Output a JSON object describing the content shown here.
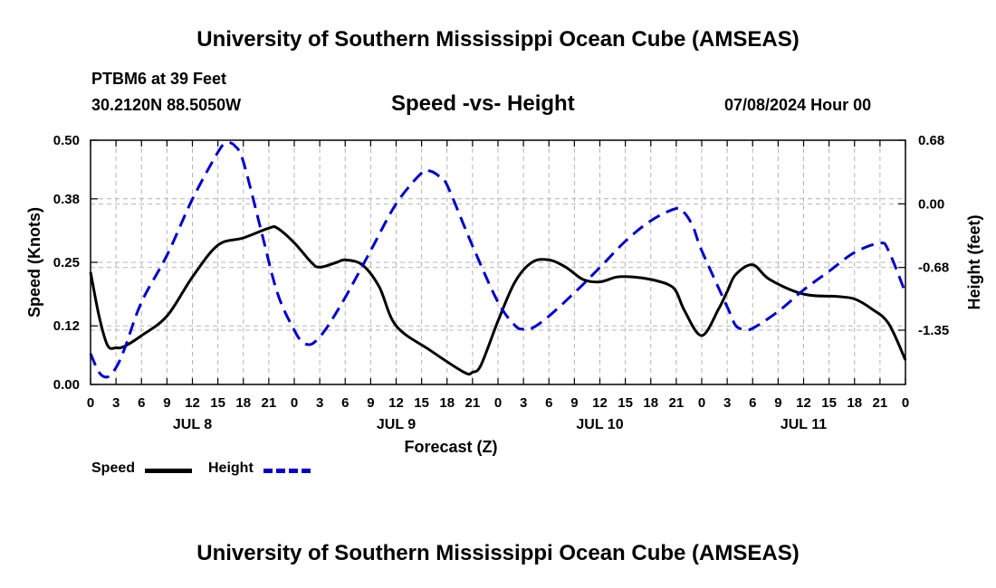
{
  "page": {
    "title_top": "University of Southern Mississippi Ocean Cube (AMSEAS)",
    "title_bottom": "University of Southern Mississippi Ocean Cube (AMSEAS)",
    "station": "PTBM6 at 39 Feet",
    "coords": "30.2120N  88.5050W",
    "datetime": "07/08/2024 Hour 00"
  },
  "chart_data": {
    "type": "line",
    "title": "Speed -vs- Height",
    "xlabel": "Forecast (Z)",
    "ylabel_left": "Speed (Knots)",
    "ylabel_right": "Height (feet)",
    "x_range_hours": [
      0,
      96
    ],
    "x_tick_labels": [
      "0",
      "3",
      "6",
      "9",
      "12",
      "15",
      "18",
      "21",
      "0",
      "3",
      "6",
      "9",
      "12",
      "15",
      "18",
      "21",
      "0",
      "3",
      "6",
      "9",
      "12",
      "15",
      "18",
      "21",
      "0",
      "3",
      "6",
      "9",
      "12",
      "15",
      "18",
      "21",
      "0"
    ],
    "day_labels": [
      {
        "label": "JUL 8",
        "hour": 12
      },
      {
        "label": "JUL 9",
        "hour": 36
      },
      {
        "label": "JUL 10",
        "hour": 60
      },
      {
        "label": "JUL 11",
        "hour": 84
      }
    ],
    "y_left": {
      "ticks": [
        0.0,
        0.12,
        0.25,
        0.38,
        0.5
      ],
      "tick_labels": [
        "0.00",
        "0.12",
        "0.25",
        "0.38",
        "0.50"
      ],
      "range": [
        0,
        0.5
      ]
    },
    "y_right": {
      "ticks": [
        0.68,
        0.0,
        -0.68,
        -1.35
      ],
      "tick_labels": [
        "0.68",
        "0.00",
        "-0.68",
        "-1.35"
      ],
      "range": [
        -1.93,
        0.68
      ]
    },
    "grid": true,
    "legend": [
      {
        "name": "Speed",
        "color": "#000000",
        "style": "solid"
      },
      {
        "name": "Height",
        "color": "#0000cc",
        "style": "dashed"
      }
    ],
    "series": [
      {
        "name": "Speed",
        "axis": "left",
        "color": "#000000",
        "x": [
          0,
          1,
          2,
          3,
          4,
          6,
          9,
          12,
          15,
          18,
          21,
          22,
          24,
          26,
          27,
          29,
          30,
          32,
          34,
          36,
          40,
          44,
          45,
          46,
          48,
          50,
          52,
          54,
          56,
          58,
          60,
          62,
          64,
          66,
          68,
          69,
          70,
          72,
          74,
          75,
          76,
          78,
          80,
          84,
          88,
          90,
          92,
          94,
          96
        ],
        "y": [
          0.23,
          0.14,
          0.08,
          0.075,
          0.078,
          0.1,
          0.14,
          0.22,
          0.285,
          0.3,
          0.32,
          0.32,
          0.29,
          0.25,
          0.24,
          0.25,
          0.255,
          0.245,
          0.2,
          0.12,
          0.07,
          0.025,
          0.025,
          0.04,
          0.13,
          0.21,
          0.25,
          0.255,
          0.24,
          0.215,
          0.21,
          0.22,
          0.22,
          0.215,
          0.205,
          0.19,
          0.15,
          0.1,
          0.155,
          0.19,
          0.225,
          0.245,
          0.215,
          0.185,
          0.18,
          0.175,
          0.155,
          0.125,
          0.05
        ]
      },
      {
        "name": "Height",
        "axis": "right",
        "color": "#0000cc",
        "x": [
          0,
          1,
          2,
          3,
          4,
          6,
          9,
          12,
          15,
          16,
          17,
          18,
          20,
          22,
          24,
          25,
          26,
          27,
          28,
          30,
          33,
          36,
          39,
          40,
          41,
          42,
          45,
          48,
          50,
          51,
          52,
          54,
          57,
          60,
          63,
          66,
          69,
          70,
          71,
          72,
          75,
          76,
          77,
          78,
          81,
          84,
          87,
          90,
          93,
          94,
          96
        ],
        "y": [
          -1.6,
          -1.8,
          -1.85,
          -1.75,
          -1.55,
          -1.05,
          -0.55,
          0.05,
          0.55,
          0.65,
          0.62,
          0.45,
          -0.25,
          -0.95,
          -1.35,
          -1.48,
          -1.5,
          -1.42,
          -1.3,
          -1.0,
          -0.5,
          0.0,
          0.33,
          0.35,
          0.3,
          0.2,
          -0.45,
          -1.05,
          -1.3,
          -1.34,
          -1.33,
          -1.2,
          -0.95,
          -0.68,
          -0.4,
          -0.18,
          -0.05,
          -0.1,
          -0.25,
          -0.5,
          -1.1,
          -1.3,
          -1.34,
          -1.33,
          -1.15,
          -0.92,
          -0.72,
          -0.52,
          -0.42,
          -0.5,
          -0.95
        ]
      }
    ]
  }
}
